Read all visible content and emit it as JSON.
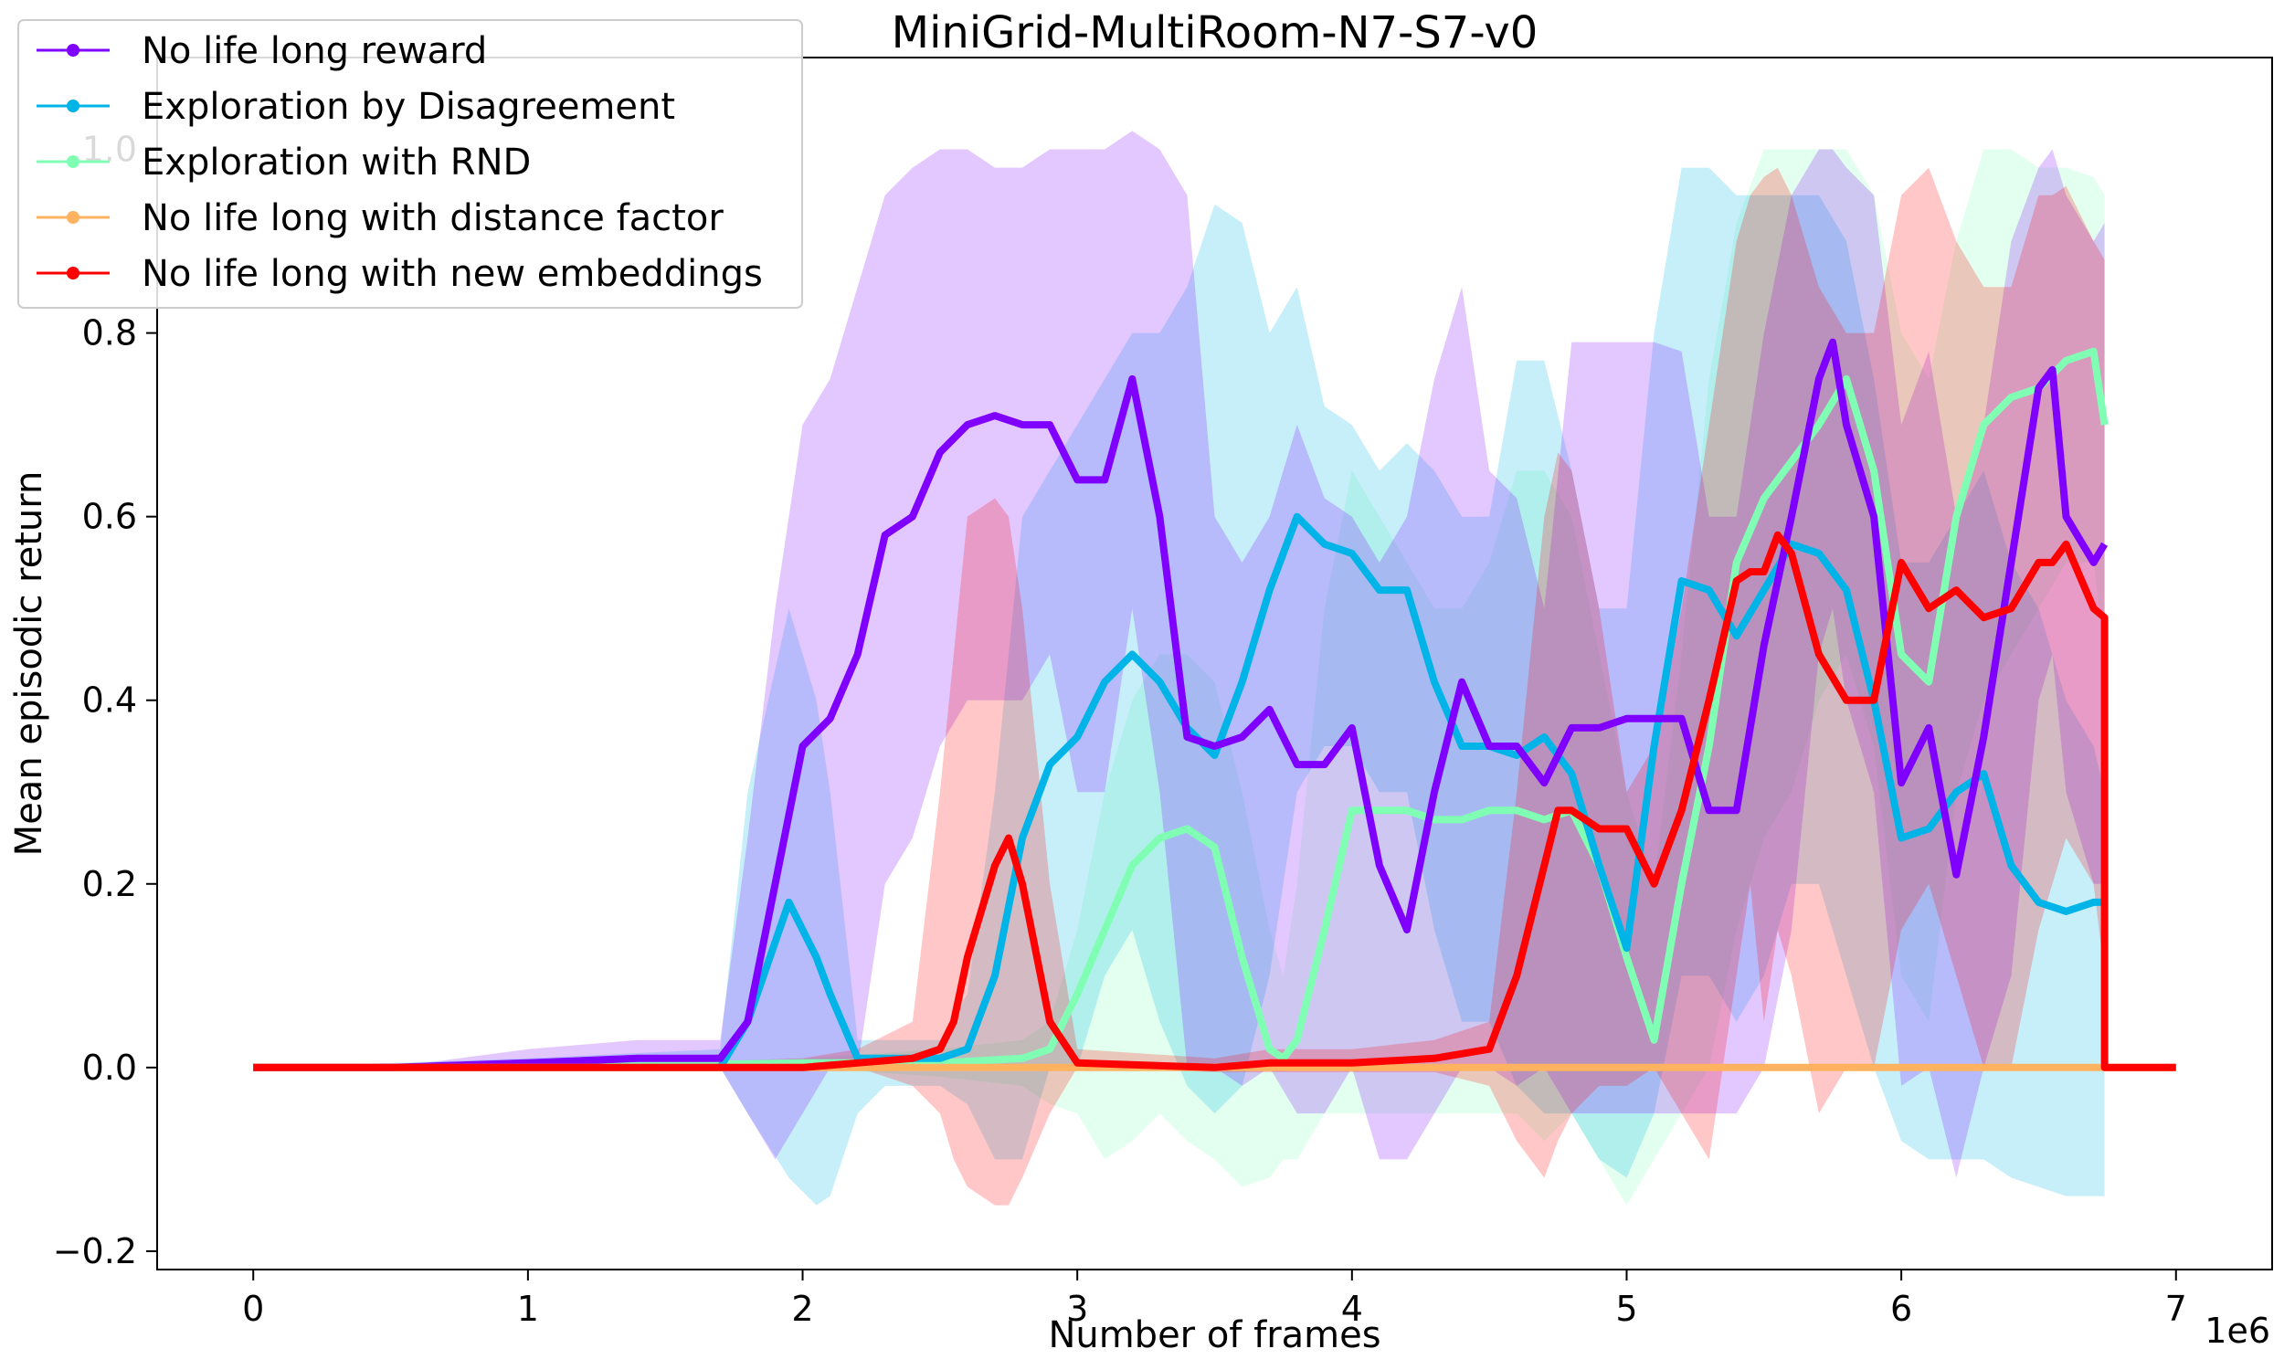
{
  "chart_data": {
    "type": "line",
    "title": "MiniGrid-MultiRoom-N7-S7-v0",
    "xlabel": "Number of frames",
    "ylabel": "Mean episodic return",
    "x_multiplier_label": "1e6",
    "xlim": [
      -0.35,
      7.35
    ],
    "ylim": [
      -0.22,
      1.1
    ],
    "xticks": [
      0,
      1,
      2,
      3,
      4,
      5,
      6,
      7
    ],
    "xtick_labels": [
      "0",
      "1",
      "2",
      "3",
      "4",
      "5",
      "6",
      "7"
    ],
    "yticks": [
      -0.2,
      0.0,
      0.2,
      0.4,
      0.6,
      0.8,
      1.0
    ],
    "ytick_labels": [
      "−0.2",
      "0.0",
      "0.2",
      "0.4",
      "0.6",
      "0.8",
      "1.0"
    ],
    "grid": false,
    "legend_position": "upper-left",
    "series": [
      {
        "name": "No life long reward",
        "color": "#8000ff",
        "x": [
          0,
          0.5,
          1.0,
          1.4,
          1.7,
          1.8,
          1.9,
          2.0,
          2.1,
          2.2,
          2.3,
          2.4,
          2.5,
          2.6,
          2.7,
          2.8,
          2.9,
          3.0,
          3.1,
          3.2,
          3.3,
          3.4,
          3.5,
          3.6,
          3.7,
          3.8,
          3.9,
          4.0,
          4.1,
          4.2,
          4.3,
          4.4,
          4.5,
          4.6,
          4.7,
          4.8,
          4.9,
          5.0,
          5.1,
          5.2,
          5.3,
          5.4,
          5.5,
          5.6,
          5.7,
          5.75,
          5.8,
          5.9,
          6.0,
          6.1,
          6.2,
          6.3,
          6.4,
          6.5,
          6.55,
          6.6,
          6.7,
          6.74
        ],
        "y": [
          0.0,
          0.0,
          0.005,
          0.01,
          0.01,
          0.05,
          0.2,
          0.35,
          0.38,
          0.45,
          0.58,
          0.6,
          0.67,
          0.7,
          0.71,
          0.7,
          0.7,
          0.64,
          0.64,
          0.75,
          0.6,
          0.36,
          0.35,
          0.36,
          0.39,
          0.33,
          0.33,
          0.37,
          0.22,
          0.15,
          0.3,
          0.42,
          0.35,
          0.35,
          0.31,
          0.37,
          0.37,
          0.38,
          0.38,
          0.38,
          0.28,
          0.28,
          0.46,
          0.6,
          0.75,
          0.79,
          0.7,
          0.6,
          0.31,
          0.37,
          0.21,
          0.36,
          0.55,
          0.74,
          0.76,
          0.6,
          0.55,
          0.57
        ],
        "band_upper": [
          0.0,
          0.0,
          0.02,
          0.03,
          0.03,
          0.25,
          0.5,
          0.7,
          0.75,
          0.85,
          0.95,
          0.98,
          1.0,
          1.0,
          0.98,
          0.98,
          1.0,
          1.0,
          1.0,
          1.02,
          1.0,
          0.95,
          0.6,
          0.55,
          0.6,
          0.7,
          0.62,
          0.6,
          0.55,
          0.6,
          0.75,
          0.85,
          0.65,
          0.62,
          0.5,
          0.79,
          0.79,
          0.79,
          0.79,
          0.78,
          0.6,
          0.6,
          0.8,
          0.95,
          1.0,
          1.0,
          0.98,
          0.95,
          0.7,
          0.78,
          0.6,
          0.7,
          0.9,
          0.98,
          1.0,
          0.95,
          0.9,
          0.92
        ],
        "band_lower": [
          0.0,
          0.0,
          0.0,
          0.0,
          0.0,
          -0.05,
          -0.1,
          -0.05,
          0.0,
          0.0,
          0.2,
          0.25,
          0.35,
          0.4,
          0.4,
          0.4,
          0.45,
          0.3,
          0.3,
          0.5,
          0.3,
          0.0,
          0.0,
          -0.02,
          0.0,
          -0.05,
          -0.05,
          0.0,
          -0.1,
          -0.1,
          -0.05,
          0.0,
          0.0,
          -0.02,
          0.0,
          -0.05,
          -0.05,
          -0.05,
          -0.05,
          -0.05,
          -0.05,
          -0.05,
          0.0,
          0.15,
          0.45,
          0.5,
          0.4,
          0.3,
          -0.02,
          0.0,
          -0.12,
          0.0,
          0.1,
          0.4,
          0.45,
          0.3,
          0.2,
          0.2
        ]
      },
      {
        "name": "Exploration by Disagreement",
        "color": "#00b4e8",
        "x": [
          0,
          1.0,
          1.7,
          1.8,
          1.95,
          2.05,
          2.1,
          2.2,
          2.3,
          2.5,
          2.6,
          2.7,
          2.8,
          2.9,
          3.0,
          3.1,
          3.2,
          3.3,
          3.4,
          3.5,
          3.6,
          3.7,
          3.8,
          3.9,
          4.0,
          4.1,
          4.2,
          4.3,
          4.4,
          4.5,
          4.6,
          4.7,
          4.8,
          4.9,
          5.0,
          5.1,
          5.2,
          5.3,
          5.4,
          5.5,
          5.6,
          5.7,
          5.8,
          5.9,
          6.0,
          6.1,
          6.2,
          6.3,
          6.4,
          6.5,
          6.6,
          6.7,
          6.74
        ],
        "y": [
          0.0,
          0.0,
          0.0,
          0.05,
          0.18,
          0.12,
          0.08,
          0.01,
          0.01,
          0.01,
          0.02,
          0.1,
          0.25,
          0.33,
          0.36,
          0.42,
          0.45,
          0.42,
          0.37,
          0.34,
          0.42,
          0.52,
          0.6,
          0.57,
          0.56,
          0.52,
          0.52,
          0.42,
          0.35,
          0.35,
          0.34,
          0.36,
          0.32,
          0.22,
          0.13,
          0.35,
          0.53,
          0.52,
          0.47,
          0.52,
          0.57,
          0.56,
          0.52,
          0.4,
          0.25,
          0.26,
          0.3,
          0.32,
          0.22,
          0.18,
          0.17,
          0.18,
          0.18
        ],
        "band_upper": [
          0.0,
          0.01,
          0.02,
          0.3,
          0.5,
          0.4,
          0.3,
          0.03,
          0.03,
          0.03,
          0.08,
          0.3,
          0.6,
          0.65,
          0.7,
          0.75,
          0.8,
          0.8,
          0.85,
          0.94,
          0.92,
          0.8,
          0.85,
          0.72,
          0.7,
          0.65,
          0.68,
          0.65,
          0.6,
          0.6,
          0.77,
          0.77,
          0.65,
          0.5,
          0.5,
          0.8,
          0.98,
          0.98,
          0.95,
          0.95,
          0.95,
          0.95,
          0.9,
          0.75,
          0.55,
          0.55,
          0.6,
          0.65,
          0.55,
          0.5,
          0.4,
          0.35,
          0.3
        ],
        "band_lower": [
          0.0,
          0.0,
          0.0,
          -0.05,
          -0.12,
          -0.15,
          -0.14,
          -0.05,
          -0.02,
          -0.02,
          -0.04,
          -0.1,
          -0.1,
          0.0,
          0.0,
          0.1,
          0.15,
          0.05,
          -0.02,
          -0.05,
          -0.02,
          0.1,
          0.3,
          0.35,
          0.35,
          0.3,
          0.3,
          0.15,
          0.05,
          0.05,
          -0.02,
          -0.05,
          -0.05,
          -0.1,
          -0.12,
          -0.05,
          0.1,
          0.1,
          0.05,
          0.1,
          0.2,
          0.2,
          0.1,
          0.0,
          -0.08,
          -0.1,
          -0.1,
          -0.1,
          -0.12,
          -0.13,
          -0.14,
          -0.14,
          -0.14
        ]
      },
      {
        "name": "Exploration with RND",
        "color": "#80ffb4",
        "x": [
          0,
          1.0,
          2.0,
          2.5,
          2.8,
          2.9,
          3.0,
          3.1,
          3.2,
          3.3,
          3.4,
          3.5,
          3.6,
          3.7,
          3.75,
          3.8,
          3.9,
          4.0,
          4.1,
          4.2,
          4.3,
          4.4,
          4.5,
          4.6,
          4.7,
          4.8,
          4.9,
          5.0,
          5.1,
          5.2,
          5.3,
          5.4,
          5.5,
          5.6,
          5.7,
          5.8,
          5.9,
          6.0,
          6.1,
          6.2,
          6.3,
          6.4,
          6.5,
          6.6,
          6.7,
          6.74
        ],
        "y": [
          0.0,
          0.0,
          0.005,
          0.005,
          0.01,
          0.02,
          0.08,
          0.15,
          0.22,
          0.25,
          0.26,
          0.24,
          0.12,
          0.02,
          0.01,
          0.03,
          0.15,
          0.28,
          0.28,
          0.28,
          0.27,
          0.27,
          0.28,
          0.28,
          0.27,
          0.28,
          0.22,
          0.12,
          0.03,
          0.2,
          0.35,
          0.55,
          0.62,
          0.66,
          0.7,
          0.75,
          0.65,
          0.45,
          0.42,
          0.6,
          0.7,
          0.73,
          0.74,
          0.77,
          0.78,
          0.7
        ],
        "band_upper": [
          0.0,
          0.0,
          0.01,
          0.02,
          0.03,
          0.05,
          0.15,
          0.3,
          0.4,
          0.45,
          0.45,
          0.42,
          0.3,
          0.15,
          0.1,
          0.2,
          0.5,
          0.65,
          0.6,
          0.55,
          0.5,
          0.5,
          0.55,
          0.65,
          0.65,
          0.6,
          0.45,
          0.3,
          0.2,
          0.45,
          0.75,
          0.92,
          1.0,
          1.0,
          1.0,
          1.0,
          0.95,
          0.8,
          0.75,
          0.9,
          1.0,
          1.0,
          0.98,
          0.98,
          0.97,
          0.95
        ],
        "band_lower": [
          0.0,
          0.0,
          0.0,
          -0.01,
          -0.02,
          -0.04,
          -0.05,
          -0.1,
          -0.08,
          -0.05,
          -0.08,
          -0.1,
          -0.13,
          -0.12,
          -0.1,
          -0.1,
          -0.05,
          -0.05,
          -0.05,
          -0.05,
          -0.05,
          -0.05,
          -0.05,
          -0.05,
          -0.08,
          -0.05,
          -0.1,
          -0.15,
          -0.1,
          -0.05,
          0.0,
          0.15,
          0.25,
          0.3,
          0.4,
          0.45,
          0.35,
          0.1,
          0.05,
          0.3,
          0.4,
          0.45,
          0.5,
          0.55,
          0.55,
          0.45
        ]
      },
      {
        "name": "No life long with distance factor",
        "color": "#ffb360",
        "x": [
          0,
          7.0
        ],
        "y": [
          0.0,
          0.0
        ]
      },
      {
        "name": "No life long with new embeddings",
        "color": "#ff0000",
        "x": [
          0,
          1.0,
          2.0,
          2.2,
          2.4,
          2.5,
          2.55,
          2.6,
          2.7,
          2.75,
          2.8,
          2.9,
          3.0,
          3.5,
          3.7,
          4.0,
          4.3,
          4.5,
          4.6,
          4.7,
          4.75,
          4.8,
          4.9,
          5.0,
          5.1,
          5.2,
          5.3,
          5.4,
          5.45,
          5.5,
          5.55,
          5.6,
          5.7,
          5.8,
          5.9,
          6.0,
          6.1,
          6.2,
          6.3,
          6.4,
          6.5,
          6.55,
          6.6,
          6.7,
          6.74,
          6.74,
          7.0
        ],
        "y": [
          0.0,
          0.0,
          0.0,
          0.005,
          0.01,
          0.02,
          0.05,
          0.12,
          0.22,
          0.25,
          0.2,
          0.05,
          0.005,
          0.0,
          0.005,
          0.005,
          0.01,
          0.02,
          0.1,
          0.22,
          0.28,
          0.28,
          0.26,
          0.26,
          0.2,
          0.28,
          0.4,
          0.53,
          0.54,
          0.54,
          0.58,
          0.56,
          0.45,
          0.4,
          0.4,
          0.55,
          0.5,
          0.52,
          0.49,
          0.5,
          0.55,
          0.55,
          0.57,
          0.5,
          0.49,
          0.0,
          0.0
        ],
        "band_upper": [
          0.0,
          0.0,
          0.01,
          0.02,
          0.05,
          0.3,
          0.45,
          0.6,
          0.62,
          0.6,
          0.5,
          0.2,
          0.02,
          0.01,
          0.02,
          0.02,
          0.03,
          0.05,
          0.3,
          0.6,
          0.67,
          0.65,
          0.5,
          0.3,
          0.35,
          0.5,
          0.7,
          0.9,
          0.95,
          0.97,
          0.98,
          0.95,
          0.85,
          0.8,
          0.8,
          0.95,
          0.98,
          0.9,
          0.85,
          0.85,
          0.95,
          0.95,
          0.96,
          0.9,
          0.88,
          0.0,
          0.0
        ],
        "band_lower": [
          0.0,
          0.0,
          0.0,
          0.0,
          -0.02,
          -0.05,
          -0.1,
          -0.13,
          -0.15,
          -0.15,
          -0.12,
          -0.05,
          0.0,
          -0.005,
          -0.005,
          -0.005,
          -0.005,
          -0.02,
          -0.08,
          -0.12,
          -0.08,
          -0.05,
          -0.02,
          -0.02,
          0.0,
          -0.05,
          -0.1,
          0.1,
          0.2,
          0.05,
          0.15,
          0.1,
          -0.05,
          0.0,
          0.0,
          0.15,
          0.2,
          0.1,
          0.0,
          0.0,
          0.15,
          0.2,
          0.25,
          0.2,
          0.1,
          0.0,
          0.0
        ]
      }
    ]
  }
}
